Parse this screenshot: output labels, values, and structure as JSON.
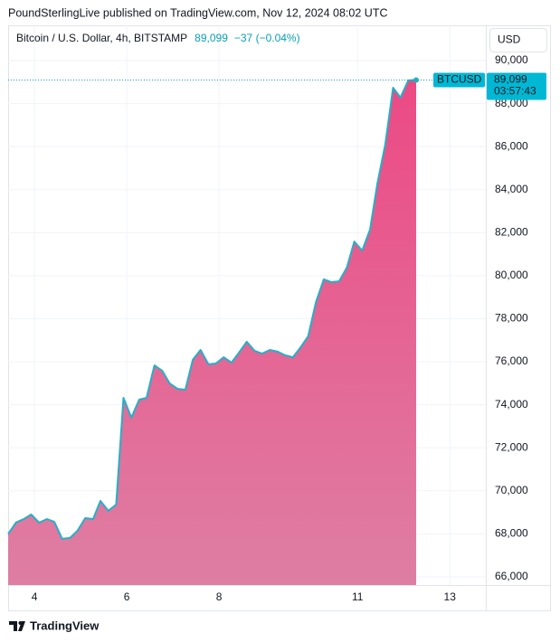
{
  "published": "PoundSterlingLive published on TradingView.com, Nov 12, 2024 08:02 UTC",
  "brand": "TradingView",
  "chart_data": {
    "type": "area",
    "title": "Bitcoin / U.S. Dollar, 4h, BITSTAMP",
    "price": {
      "value": 89099,
      "label": "89,099"
    },
    "change": "−37 (−0.04%)",
    "currency": "USD",
    "ticker": "BTCUSD",
    "countdown": "03:57:43",
    "x": [
      3.43,
      3.6,
      3.77,
      3.93,
      4.1,
      4.27,
      4.43,
      4.6,
      4.77,
      4.93,
      5.1,
      5.27,
      5.43,
      5.6,
      5.77,
      5.93,
      6.1,
      6.27,
      6.43,
      6.6,
      6.77,
      6.93,
      7.1,
      7.27,
      7.43,
      7.6,
      7.77,
      7.93,
      8.1,
      8.27,
      8.43,
      8.6,
      8.77,
      8.93,
      9.1,
      9.27,
      9.43,
      9.6,
      9.77,
      9.93,
      10.1,
      10.27,
      10.43,
      10.6,
      10.77,
      10.93,
      11.1,
      11.27,
      11.43,
      11.6,
      11.77,
      11.93,
      12.1,
      12.27
    ],
    "series": [
      {
        "name": "BTCUSD",
        "color": "#26b0c6",
        "fill": "#ec4a84",
        "values": [
          67990,
          68530,
          68690,
          68900,
          68520,
          68690,
          68560,
          67770,
          67810,
          68140,
          68730,
          68690,
          69530,
          69070,
          69360,
          74320,
          73400,
          74240,
          74320,
          75830,
          75580,
          74990,
          74740,
          74700,
          76090,
          76550,
          75880,
          75920,
          76210,
          75960,
          76420,
          76930,
          76510,
          76380,
          76550,
          76470,
          76300,
          76210,
          76680,
          77180,
          78780,
          79830,
          79700,
          79740,
          80380,
          81590,
          81170,
          82140,
          84280,
          86090,
          88740,
          88280,
          89080,
          89099
        ]
      }
    ],
    "xlim": [
      3.43,
      13.78
    ],
    "xticks": [
      4,
      6,
      8,
      11,
      13
    ],
    "ylim": [
      65620,
      91640
    ],
    "yticks": [
      {
        "value": 66000,
        "label": "66,000"
      },
      {
        "value": 68000,
        "label": "68,000"
      },
      {
        "value": 70000,
        "label": "70,000"
      },
      {
        "value": 72000,
        "label": "72,000"
      },
      {
        "value": 74000,
        "label": "74,000"
      },
      {
        "value": 76000,
        "label": "76,000"
      },
      {
        "value": 78000,
        "label": "78,000"
      },
      {
        "value": 80000,
        "label": "80,000"
      },
      {
        "value": 82000,
        "label": "82,000"
      },
      {
        "value": 84000,
        "label": "84,000"
      },
      {
        "value": 86000,
        "label": "86,000"
      },
      {
        "value": 88000,
        "label": "88,000"
      },
      {
        "value": 90000,
        "label": "90,000"
      }
    ],
    "grid": true
  }
}
